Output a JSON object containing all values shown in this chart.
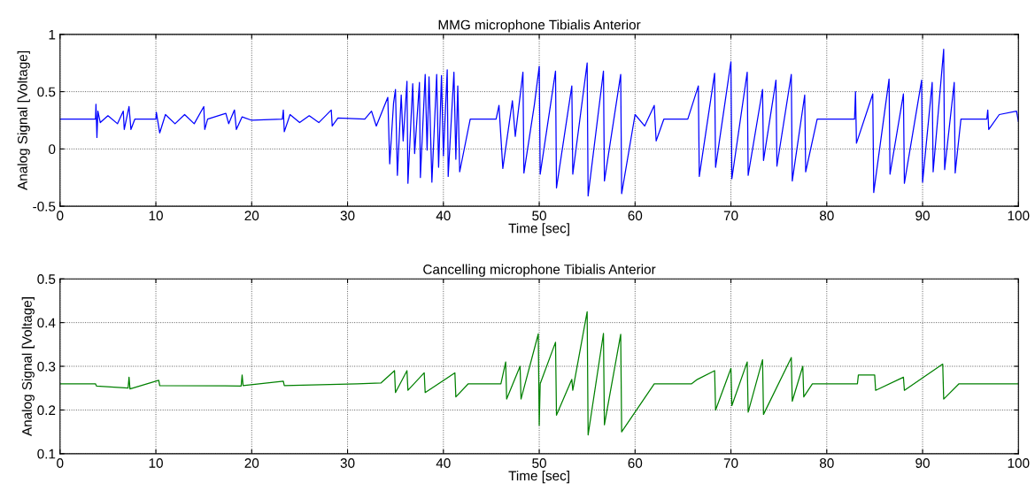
{
  "chart_data": [
    {
      "type": "line",
      "title": "MMG microphone Tibialis Anterior",
      "xlabel": "Time [sec]",
      "ylabel": "Analog Signal [Voltage]",
      "xlim": [
        0,
        100
      ],
      "xticks": [
        0,
        10,
        20,
        30,
        40,
        50,
        60,
        70,
        80,
        90,
        100
      ],
      "ylim": [
        -0.5,
        1
      ],
      "yticks": [
        -0.5,
        0,
        0.5,
        1
      ],
      "grid": true,
      "series": [
        {
          "color": "#0000ff",
          "x": [
            0,
            3.7,
            3.75,
            3.85,
            3.95,
            4.2,
            5,
            6,
            6.6,
            6.7,
            7.2,
            7.4,
            7.8,
            10,
            10.05,
            10.4,
            11,
            12,
            13,
            14,
            15,
            15.1,
            15.4,
            17.3,
            17.6,
            18.2,
            18.4,
            19,
            20,
            23.2,
            23.3,
            23.4,
            24,
            25,
            26,
            27,
            28.3,
            28.4,
            29,
            31.8,
            32.5,
            33,
            34.2,
            34.4,
            34.8,
            35,
            35.2,
            35.6,
            35.8,
            36.2,
            36.3,
            36.8,
            37,
            37.5,
            37.6,
            38.1,
            38.3,
            38.5,
            38.8,
            39.3,
            39.5,
            39.8,
            40,
            40.4,
            40.5,
            41.1,
            41.3,
            41.5,
            41.7,
            42.8,
            45.5,
            45.8,
            46.2,
            47.2,
            47.5,
            48.3,
            48.4,
            49.5,
            50,
            50.1,
            51.7,
            51.8,
            53.4,
            53.5,
            55,
            55.1,
            56.7,
            56.8,
            58.5,
            58.6,
            60,
            61,
            62,
            62.2,
            63,
            65.5,
            66.6,
            66.7,
            68.3,
            68.4,
            70,
            70.1,
            71.7,
            71.8,
            73.3,
            73.4,
            74.7,
            74.8,
            76.3,
            76.4,
            77.7,
            77.8,
            79,
            82.9,
            83,
            83.1,
            84.8,
            84.9,
            86.5,
            86.6,
            88,
            88.1,
            89.9,
            90,
            91,
            91.1,
            92.2,
            92.3,
            93.3,
            93.4,
            94,
            96.7,
            96.8,
            96.9,
            98,
            99.8,
            100
          ],
          "values": [
            0.26,
            0.26,
            0.39,
            0.1,
            0.33,
            0.23,
            0.29,
            0.22,
            0.33,
            0.17,
            0.37,
            0.17,
            0.26,
            0.26,
            0.32,
            0.14,
            0.3,
            0.22,
            0.3,
            0.22,
            0.37,
            0.17,
            0.26,
            0.31,
            0.22,
            0.34,
            0.17,
            0.28,
            0.25,
            0.26,
            0.34,
            0.15,
            0.3,
            0.23,
            0.29,
            0.23,
            0.34,
            0.2,
            0.27,
            0.26,
            0.33,
            0.2,
            0.45,
            -0.13,
            0.4,
            0.52,
            -0.23,
            0.47,
            0.07,
            0.59,
            -0.3,
            0.57,
            -0.04,
            0.58,
            -0.25,
            0.65,
            -0.01,
            0.63,
            -0.29,
            0.65,
            -0.16,
            0.64,
            -0.06,
            0.69,
            -0.24,
            0.67,
            -0.09,
            0.55,
            -0.2,
            0.26,
            0.26,
            0.38,
            -0.17,
            0.42,
            0.11,
            0.67,
            -0.21,
            0.39,
            0.72,
            -0.22,
            0.68,
            -0.34,
            0.55,
            -0.22,
            0.75,
            -0.41,
            0.68,
            -0.28,
            0.65,
            -0.39,
            0.3,
            0.2,
            0.38,
            0.07,
            0.26,
            0.26,
            0.55,
            -0.24,
            0.66,
            -0.16,
            0.76,
            -0.26,
            0.67,
            -0.23,
            0.52,
            -0.1,
            0.6,
            -0.15,
            0.65,
            -0.28,
            0.47,
            -0.2,
            0.26,
            0.26,
            0.5,
            0.05,
            0.48,
            -0.38,
            0.61,
            -0.22,
            0.48,
            -0.3,
            0.6,
            -0.29,
            0.58,
            -0.2,
            0.87,
            -0.18,
            0.58,
            -0.21,
            0.26,
            0.26,
            0.34,
            0.17,
            0.3,
            0.33,
            0.24
          ]
        }
      ]
    },
    {
      "type": "line",
      "title": "Cancelling microphone Tibialis Anterior",
      "xlabel": "Time [sec]",
      "ylabel": "Analog Signal [Voltage]",
      "xlim": [
        0,
        100
      ],
      "xticks": [
        0,
        10,
        20,
        30,
        40,
        50,
        60,
        70,
        80,
        90,
        100
      ],
      "ylim": [
        0.1,
        0.5
      ],
      "yticks": [
        0.1,
        0.2,
        0.3,
        0.4,
        0.5
      ],
      "grid": true,
      "series": [
        {
          "color": "#008000",
          "x": [
            0,
            3.7,
            3.8,
            7.1,
            7.2,
            7.3,
            10.3,
            10.4,
            18.9,
            19,
            19.1,
            23.3,
            23.4,
            31,
            33.5,
            34.9,
            35,
            36.2,
            36.3,
            38,
            38.1,
            41.2,
            41.3,
            42.6,
            46,
            46.5,
            46.6,
            48,
            48.1,
            49.9,
            50,
            50.1,
            51.7,
            51.8,
            53.4,
            53.5,
            55,
            55.1,
            56.7,
            56.8,
            58.5,
            58.6,
            62,
            65.9,
            66.5,
            68.3,
            68.4,
            70,
            70.1,
            71.7,
            71.8,
            73.3,
            73.4,
            76.3,
            76.4,
            77.5,
            77.6,
            78.5,
            83.2,
            83.3,
            85,
            85.1,
            88,
            88.1,
            92.1,
            92.2,
            93.8,
            100
          ],
          "values": [
            0.26,
            0.26,
            0.255,
            0.25,
            0.275,
            0.248,
            0.268,
            0.256,
            0.255,
            0.28,
            0.256,
            0.266,
            0.256,
            0.26,
            0.262,
            0.29,
            0.24,
            0.29,
            0.245,
            0.285,
            0.24,
            0.285,
            0.23,
            0.26,
            0.26,
            0.31,
            0.225,
            0.3,
            0.225,
            0.374,
            0.165,
            0.26,
            0.355,
            0.188,
            0.27,
            0.245,
            0.425,
            0.143,
            0.375,
            0.166,
            0.373,
            0.15,
            0.26,
            0.26,
            0.27,
            0.29,
            0.2,
            0.295,
            0.21,
            0.31,
            0.195,
            0.315,
            0.19,
            0.32,
            0.22,
            0.3,
            0.23,
            0.26,
            0.26,
            0.28,
            0.28,
            0.245,
            0.275,
            0.245,
            0.305,
            0.225,
            0.26,
            0.26
          ]
        }
      ]
    }
  ]
}
